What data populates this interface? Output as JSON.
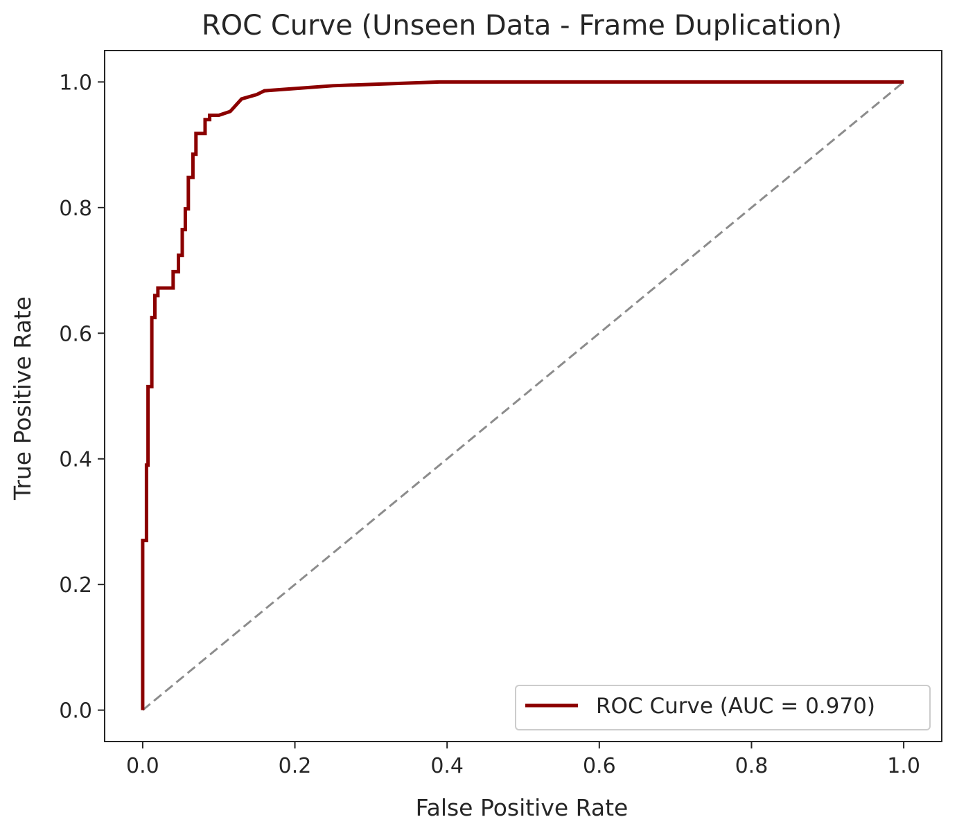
{
  "chart_data": {
    "type": "line",
    "title": "ROC Curve (Unseen Data - Frame Duplication)",
    "xlabel": "False Positive Rate",
    "ylabel": "True Positive Rate",
    "xlim": [
      -0.05,
      1.05
    ],
    "ylim": [
      -0.05,
      1.05
    ],
    "xticks": [
      "0.0",
      "0.2",
      "0.4",
      "0.6",
      "0.8",
      "1.0"
    ],
    "yticks": [
      "0.0",
      "0.2",
      "0.4",
      "0.6",
      "0.8",
      "1.0"
    ],
    "grid": false,
    "legend_position": "lower-right",
    "series": [
      {
        "name": "ROC Curve (AUC = 0.970)",
        "color": "#8b0000",
        "style": "solid",
        "x": [
          0.0,
          0.0,
          0.005,
          0.005,
          0.007,
          0.007,
          0.012,
          0.012,
          0.016,
          0.016,
          0.02,
          0.02,
          0.04,
          0.04,
          0.047,
          0.047,
          0.052,
          0.052,
          0.056,
          0.056,
          0.06,
          0.06,
          0.066,
          0.066,
          0.07,
          0.07,
          0.082,
          0.082,
          0.088,
          0.088,
          0.1,
          0.115,
          0.115,
          0.13,
          0.13,
          0.15,
          0.15,
          0.16,
          0.16,
          0.25,
          0.25,
          0.39,
          0.39,
          1.0
        ],
        "y": [
          0.0,
          0.27,
          0.27,
          0.39,
          0.39,
          0.515,
          0.515,
          0.625,
          0.625,
          0.66,
          0.66,
          0.672,
          0.672,
          0.698,
          0.698,
          0.724,
          0.724,
          0.765,
          0.765,
          0.798,
          0.798,
          0.848,
          0.848,
          0.885,
          0.885,
          0.918,
          0.918,
          0.94,
          0.94,
          0.947,
          0.947,
          0.953,
          0.953,
          0.973,
          0.973,
          0.98,
          0.98,
          0.986,
          0.986,
          0.994,
          0.994,
          1.0,
          1.0,
          1.0
        ]
      },
      {
        "color": "#8c8c8c",
        "style": "dashed",
        "x": [
          0.0,
          1.0
        ],
        "y": [
          0.0,
          1.0
        ]
      }
    ]
  }
}
